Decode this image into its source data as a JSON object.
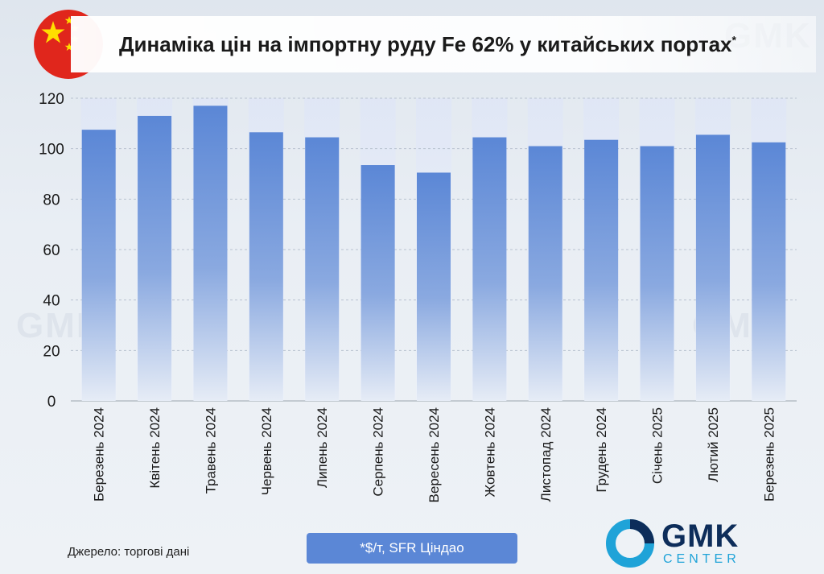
{
  "header": {
    "title": "Динаміка цін на імпортну руду Fe 62% у китайських портах",
    "title_mark": "*"
  },
  "footer": {
    "source": "Джерело: торгові дані",
    "unit_note": "*$/т,  SFR Ціндао"
  },
  "logo": {
    "name": "GMK",
    "sub": "CENTER"
  },
  "colors": {
    "bar": "#5b87d6",
    "flag_red": "#e0261c",
    "flag_star": "#ffde00",
    "logo_blue": "#1fa3d8"
  },
  "chart_data": {
    "type": "bar",
    "title": "Динаміка цін на імпортну руду Fe 62% у китайських портах*",
    "categories": [
      "Березень 2024",
      "Квітень 2024",
      "Травень 2024",
      "Червень 2024",
      "Липень 2024",
      "Серпень 2024",
      "Вересень 2024",
      "Жовтень 2024",
      "Листопад 2024",
      "Грудень 2024",
      "Січень 2025",
      "Лютий 2025",
      "Березень 2025"
    ],
    "values": [
      107.5,
      113,
      117,
      106.5,
      104.5,
      93.5,
      90.5,
      104.5,
      101,
      103.5,
      101,
      105.5,
      102.5
    ],
    "yticks": [
      0,
      20,
      40,
      60,
      80,
      100,
      120
    ],
    "ylim": [
      0,
      120
    ],
    "xlabel": "",
    "ylabel": "",
    "grid": true,
    "legend": "none"
  }
}
